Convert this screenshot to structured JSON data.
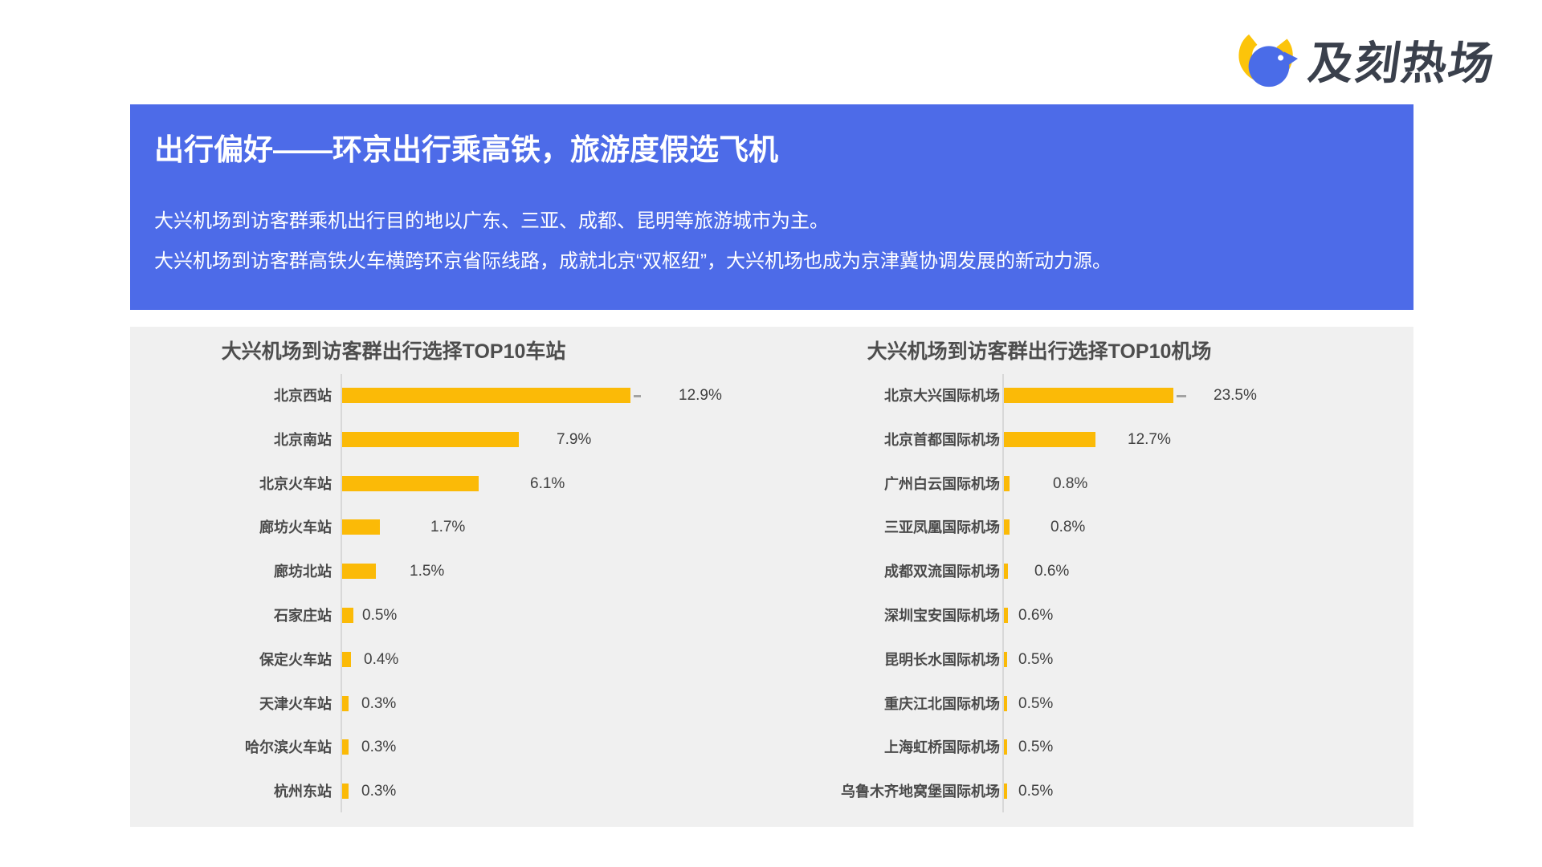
{
  "logo": {
    "brand_name": "及刻热场",
    "icon": "bird-in-c-logo",
    "colors": {
      "yellow": "#FCC40A",
      "blue": "#4A6CE8",
      "text": "#3A404C"
    }
  },
  "header": {
    "title": "出行偏好——环京出行乘高铁，旅游度假选飞机",
    "subtitle1": "大兴机场到访客群乘机出行目的地以广东、三亚、成都、昆明等旅游城市为主。",
    "subtitle2": "大兴机场到访客群高铁火车横跨环京省际线路，成就北京“双枢纽”，大兴机场也成为京津冀协调发展的新动力源。",
    "background_color": "#4D6BE8",
    "text_color": "#FFFFFF"
  },
  "chart_data": [
    {
      "type": "bar",
      "orientation": "horizontal",
      "title": "大兴机场到访客群出行选择TOP10车站",
      "categories": [
        "北京西站",
        "北京南站",
        "北京火车站",
        "廊坊火车站",
        "廊坊北站",
        "石家庄站",
        "保定火车站",
        "天津火车站",
        "哈尔滨火车站",
        "杭州东站"
      ],
      "values": [
        12.9,
        7.9,
        6.1,
        1.7,
        1.5,
        0.5,
        0.4,
        0.3,
        0.3,
        0.3
      ],
      "value_labels": [
        "12.9%",
        "7.9%",
        "6.1%",
        "1.7%",
        "1.5%",
        "0.5%",
        "0.4%",
        "0.3%",
        "0.3%",
        "0.3%"
      ],
      "unit": "%",
      "bar_color": "#FBBA07",
      "xlim": [
        0,
        14
      ],
      "grid": false,
      "value_label_position": "outside-end",
      "first_bar_has_whisker": true
    },
    {
      "type": "bar",
      "orientation": "horizontal",
      "title": "大兴机场到访客群出行选择TOP10机场",
      "categories": [
        "北京大兴国际机场",
        "北京首都国际机场",
        "广州白云国际机场",
        "三亚凤凰国际机场",
        "成都双流国际机场",
        "深圳宝安国际机场",
        "昆明长水国际机场",
        "重庆江北国际机场",
        "上海虹桥国际机场",
        "乌鲁木齐地窝堡国际机场"
      ],
      "values": [
        23.5,
        12.7,
        0.8,
        0.8,
        0.6,
        0.6,
        0.5,
        0.5,
        0.5,
        0.5
      ],
      "value_labels": [
        "23.5%",
        "12.7%",
        "0.8%",
        "0.8%",
        "0.6%",
        "0.6%",
        "0.5%",
        "0.5%",
        "0.5%",
        "0.5%"
      ],
      "unit": "%",
      "bar_color": "#FBBA07",
      "xlim": [
        0,
        26
      ],
      "grid": false,
      "value_label_position": "outside-end",
      "first_bar_has_whisker": true
    }
  ]
}
